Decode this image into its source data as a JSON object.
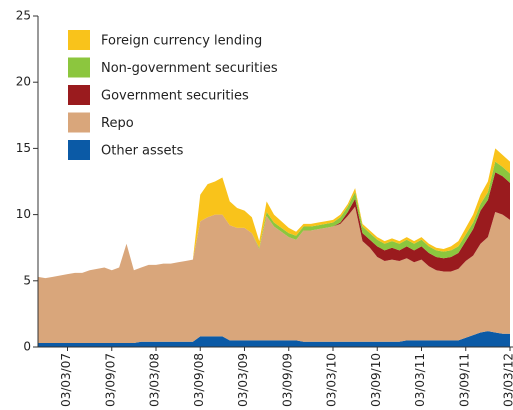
{
  "chart_data": {
    "type": "stacked_area",
    "categories": [
      null,
      null,
      null,
      null,
      "03/03/07",
      null,
      null,
      null,
      null,
      null,
      "03/09/07",
      null,
      null,
      null,
      null,
      null,
      "03/03/08",
      null,
      null,
      null,
      null,
      null,
      "03/09/08",
      null,
      null,
      null,
      null,
      null,
      "03/03/09",
      null,
      null,
      null,
      null,
      null,
      "03/09/09",
      null,
      null,
      null,
      null,
      null,
      "03/03/10",
      null,
      null,
      null,
      null,
      null,
      "03/09/10",
      null,
      null,
      null,
      null,
      null,
      "03/03/11",
      null,
      null,
      null,
      null,
      null,
      "03/09/11",
      null,
      null,
      null,
      null,
      null,
      "03/03/12"
    ],
    "series": [
      {
        "name": "Foreign currency lending",
        "color": "#f9c31b",
        "values": [
          0,
          0,
          0,
          0,
          0,
          0,
          0,
          0,
          0,
          0,
          0,
          0,
          0,
          0,
          0,
          0,
          0,
          0,
          0,
          0,
          0,
          0,
          2.0,
          2.5,
          2.5,
          2.8,
          1.8,
          1.5,
          1.3,
          1.2,
          0.5,
          0.8,
          0.6,
          0.5,
          0.4,
          0.3,
          0.2,
          0.2,
          0.2,
          0.2,
          0.2,
          0.2,
          0.2,
          0.3,
          0.2,
          0.2,
          0.2,
          0.2,
          0.2,
          0.2,
          0.2,
          0.2,
          0.2,
          0.2,
          0.2,
          0.2,
          0.3,
          0.4,
          0.5,
          0.6,
          0.7,
          0.8,
          1.0,
          0.9,
          0.9
        ]
      },
      {
        "name": "Non-government securities",
        "color": "#8cc63e",
        "values": [
          0,
          0,
          0,
          0,
          0,
          0,
          0,
          0,
          0,
          0,
          0,
          0,
          0,
          0,
          0,
          0,
          0,
          0,
          0,
          0,
          0,
          0,
          0,
          0,
          0,
          0,
          0,
          0,
          0,
          0,
          0.1,
          0.3,
          0.3,
          0.3,
          0.3,
          0.3,
          0.3,
          0.3,
          0.3,
          0.3,
          0.3,
          0.4,
          0.4,
          0.5,
          0.5,
          0.5,
          0.5,
          0.5,
          0.5,
          0.5,
          0.5,
          0.5,
          0.5,
          0.5,
          0.5,
          0.5,
          0.5,
          0.5,
          0.5,
          0.5,
          0.5,
          0.6,
          0.8,
          0.7,
          0.7
        ]
      },
      {
        "name": "Government securities",
        "color": "#9a1b1e",
        "values": [
          0,
          0,
          0,
          0,
          0,
          0,
          0,
          0,
          0,
          0,
          0,
          0,
          0,
          0,
          0,
          0,
          0,
          0,
          0,
          0,
          0,
          0,
          0,
          0,
          0,
          0,
          0,
          0,
          0,
          0,
          0,
          0,
          0,
          0,
          0,
          0,
          0,
          0,
          0,
          0,
          0,
          0.1,
          0.3,
          0.6,
          0.6,
          0.6,
          0.8,
          0.8,
          0.9,
          0.8,
          0.9,
          0.9,
          1.0,
          1.0,
          1.0,
          1.0,
          1.1,
          1.2,
          1.5,
          2.0,
          2.5,
          2.8,
          3.0,
          2.9,
          2.8
        ]
      },
      {
        "name": "Repo",
        "color": "#d9a67b",
        "values": [
          5.0,
          4.9,
          5.0,
          5.1,
          5.2,
          5.3,
          5.3,
          5.5,
          5.6,
          5.7,
          5.5,
          5.7,
          7.5,
          5.5,
          5.6,
          5.8,
          5.8,
          5.9,
          5.9,
          6.0,
          6.1,
          6.2,
          8.7,
          9.0,
          9.2,
          9.2,
          8.7,
          8.5,
          8.5,
          8.1,
          6.9,
          9.4,
          8.6,
          8.2,
          7.8,
          7.6,
          8.4,
          8.4,
          8.5,
          8.6,
          8.7,
          8.9,
          9.5,
          10.2,
          7.6,
          7.1,
          6.4,
          6.1,
          6.2,
          6.1,
          6.2,
          5.9,
          6.1,
          5.6,
          5.3,
          5.2,
          5.2,
          5.4,
          5.8,
          6.0,
          6.7,
          7.1,
          9.1,
          9.0,
          8.6
        ]
      },
      {
        "name": "Other assets",
        "color": "#0b5aa6",
        "values": [
          0.3,
          0.3,
          0.3,
          0.3,
          0.3,
          0.3,
          0.3,
          0.3,
          0.3,
          0.3,
          0.3,
          0.3,
          0.3,
          0.3,
          0.4,
          0.4,
          0.4,
          0.4,
          0.4,
          0.4,
          0.4,
          0.4,
          0.8,
          0.8,
          0.8,
          0.8,
          0.5,
          0.5,
          0.5,
          0.5,
          0.5,
          0.5,
          0.5,
          0.5,
          0.5,
          0.5,
          0.4,
          0.4,
          0.4,
          0.4,
          0.4,
          0.4,
          0.4,
          0.4,
          0.4,
          0.4,
          0.4,
          0.4,
          0.4,
          0.4,
          0.5,
          0.5,
          0.5,
          0.5,
          0.5,
          0.5,
          0.5,
          0.5,
          0.7,
          0.9,
          1.1,
          1.2,
          1.1,
          1.0,
          1.0
        ]
      }
    ],
    "ylim": [
      0,
      25
    ],
    "yticks": [
      0,
      5,
      10,
      15,
      20,
      25
    ],
    "legend": "top-left"
  }
}
